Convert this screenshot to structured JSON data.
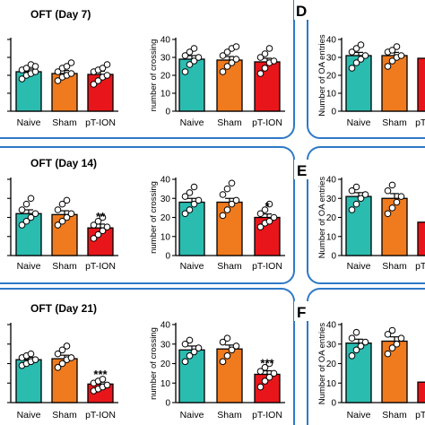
{
  "colors": {
    "Naive": "#2bbcb0",
    "Sham": "#f07a1e",
    "pT-ION": "#e8161b",
    "panel_border": "#2f79c6"
  },
  "chart_data": [
    {
      "id": "day7-center",
      "type": "bar",
      "title": "OFT (Day 7)",
      "ylabel": "",
      "ylim": [
        0,
        40
      ],
      "yticks": [
        "0",
        "10",
        "20",
        "30",
        "40"
      ],
      "categories": [
        "Naive",
        "Sham",
        "pT-ION"
      ],
      "values": [
        22,
        21,
        20.5
      ],
      "sem": [
        1.5,
        1.7,
        1.8
      ],
      "sig": [
        "",
        "",
        ""
      ],
      "points": [
        [
          18,
          20,
          21,
          22,
          23,
          24,
          26,
          25
        ],
        [
          17,
          19,
          20,
          21,
          22,
          24,
          25,
          27
        ],
        [
          15,
          17,
          19,
          20,
          22,
          23,
          24,
          26
        ]
      ]
    },
    {
      "id": "day7-crossing",
      "type": "bar",
      "title": "",
      "ylabel": "number of crossing",
      "ylim": [
        0,
        40
      ],
      "yticks": [
        "0",
        "10",
        "20",
        "30",
        "40"
      ],
      "categories": [
        "Naive",
        "Sham",
        "pT-ION"
      ],
      "values": [
        29,
        28.5,
        27.5
      ],
      "sem": [
        2,
        2,
        2
      ],
      "sig": [
        "",
        "",
        ""
      ],
      "points": [
        [
          22,
          26,
          28,
          30,
          31,
          33,
          35
        ],
        [
          22,
          25,
          27,
          29,
          31,
          33,
          35,
          36
        ],
        [
          21,
          24,
          27,
          28,
          30,
          32,
          35
        ]
      ]
    },
    {
      "id": "day7-oa",
      "type": "bar",
      "title": "",
      "ylabel": "Number of OA entries",
      "ylim": [
        0,
        40
      ],
      "yticks": [
        "0",
        "10",
        "20",
        "30",
        "40"
      ],
      "categories": [
        "Naive",
        "Sham",
        "pT-ION"
      ],
      "values": [
        31,
        31,
        29.5
      ],
      "sem": [
        1.8,
        1.8,
        1.5
      ],
      "sig": [
        "",
        "",
        ""
      ],
      "points": [
        [
          24,
          27,
          29,
          31,
          33,
          35,
          37
        ],
        [
          25,
          28,
          30,
          31,
          33,
          34,
          36
        ],
        []
      ]
    },
    {
      "id": "day14-center",
      "type": "bar",
      "title": "OFT (Day 14)",
      "ylabel": "",
      "ylim": [
        0,
        40
      ],
      "yticks": [
        "0",
        "10",
        "20",
        "30",
        "40"
      ],
      "categories": [
        "Naive",
        "Sham",
        "pT-ION"
      ],
      "values": [
        22,
        21.5,
        14.5
      ],
      "sem": [
        2,
        2,
        2
      ],
      "sig": [
        "",
        "",
        "**"
      ],
      "points": [
        [
          16,
          18,
          20,
          22,
          24,
          27,
          30
        ],
        [
          16,
          18,
          20,
          22,
          24,
          27,
          29
        ],
        [
          9,
          11,
          13,
          15,
          16,
          18,
          20
        ]
      ]
    },
    {
      "id": "day14-crossing",
      "type": "bar",
      "title": "",
      "ylabel": "number of crossing",
      "ylim": [
        0,
        40
      ],
      "yticks": [
        "0",
        "10",
        "20",
        "30",
        "40"
      ],
      "categories": [
        "Naive",
        "Sham",
        "pT-ION"
      ],
      "values": [
        28,
        28,
        20
      ],
      "sem": [
        2,
        2,
        1.8
      ],
      "sig": [
        "",
        "",
        "*"
      ],
      "points": [
        [
          22,
          24,
          27,
          29,
          31,
          33,
          36
        ],
        [
          21,
          24,
          27,
          29,
          32,
          35,
          38
        ],
        [
          15,
          17,
          18,
          20,
          22,
          24,
          27
        ]
      ]
    },
    {
      "id": "day14-oa",
      "type": "bar",
      "title": "",
      "ylabel": "Number of OA entries",
      "ylim": [
        0,
        40
      ],
      "yticks": [
        "0",
        "10",
        "20",
        "30",
        "40"
      ],
      "categories": [
        "Naive",
        "Sham",
        "pT-ION"
      ],
      "values": [
        31,
        30,
        17.5
      ],
      "sem": [
        2,
        2.5,
        2
      ],
      "sig": [
        "",
        "",
        "*"
      ],
      "points": [
        [
          24,
          27,
          30,
          32,
          34,
          36
        ],
        [
          22,
          25,
          28,
          31,
          34,
          37
        ],
        []
      ]
    },
    {
      "id": "day21-center",
      "type": "bar",
      "title": "OFT (Day 21)",
      "ylabel": "",
      "ylim": [
        0,
        40
      ],
      "yticks": [
        "0",
        "10",
        "20",
        "30",
        "40"
      ],
      "categories": [
        "Naive",
        "Sham",
        "pT-ION"
      ],
      "values": [
        22,
        22.5,
        9.5
      ],
      "sem": [
        1.2,
        1.8,
        1
      ],
      "sig": [
        "",
        "",
        "***"
      ],
      "points": [
        [
          19,
          20,
          21,
          22,
          23,
          24,
          25
        ],
        [
          18,
          20,
          22,
          23,
          25,
          27,
          29
        ],
        [
          6,
          7,
          8,
          9,
          10,
          11,
          12
        ]
      ]
    },
    {
      "id": "day21-crossing",
      "type": "bar",
      "title": "",
      "ylabel": "number of crossing",
      "ylim": [
        0,
        40
      ],
      "yticks": [
        "0",
        "10",
        "20",
        "30",
        "40"
      ],
      "categories": [
        "Naive",
        "Sham",
        "pT-ION"
      ],
      "values": [
        27,
        27.5,
        14.5
      ],
      "sem": [
        2,
        2,
        1.8
      ],
      "sig": [
        "",
        "",
        "***"
      ],
      "points": [
        [
          21,
          24,
          26,
          28,
          30,
          32
        ],
        [
          21,
          24,
          27,
          29,
          31,
          33
        ],
        [
          8,
          11,
          13,
          15,
          16,
          18,
          20
        ]
      ]
    },
    {
      "id": "day21-oa",
      "type": "bar",
      "title": "",
      "ylabel": "Number of OA entries",
      "ylim": [
        0,
        40
      ],
      "yticks": [
        "0",
        "10",
        "20",
        "30",
        "40"
      ],
      "categories": [
        "Naive",
        "Sham",
        "pT-ION"
      ],
      "values": [
        30.5,
        31.5,
        10.5
      ],
      "sem": [
        2,
        2.2,
        1.5
      ],
      "sig": [
        "",
        "",
        "*"
      ],
      "points": [
        [
          24,
          27,
          29,
          31,
          33,
          36
        ],
        [
          25,
          28,
          30,
          33,
          35,
          37
        ],
        []
      ]
    }
  ],
  "panel_letters": [
    "D",
    "E",
    "F"
  ]
}
